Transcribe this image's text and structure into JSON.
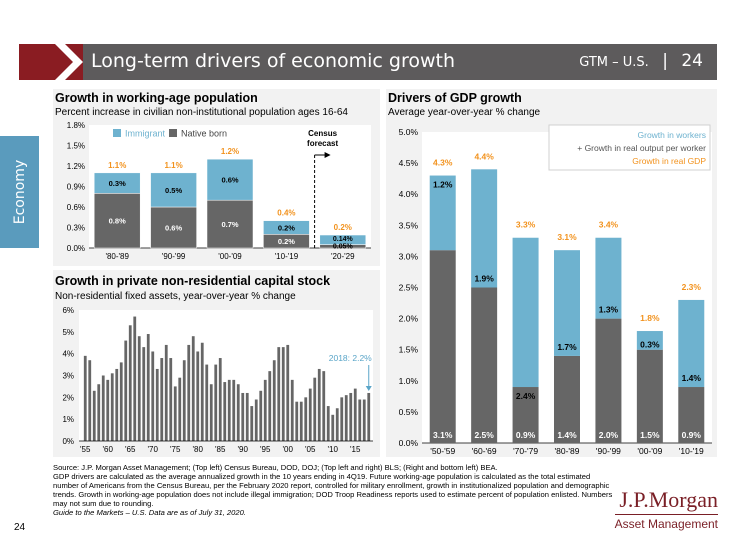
{
  "header": {
    "title": "Long-term drivers of economic growth",
    "section": "GTM – U.S.",
    "separator": "|",
    "page": "24"
  },
  "side_tab": {
    "label": "Economy"
  },
  "panels": {
    "working_age": {
      "title": "Growth in working-age population",
      "subtitle": "Percent increase in civilian non-institutional population ages 16-64",
      "legend": {
        "immigrant": "Immigrant",
        "native": "Native born"
      },
      "census_label": "Census\nforecast"
    },
    "capital_stock": {
      "title": "Growth in private non-residential capital stock",
      "subtitle": "Non-residential fixed assets, year-over-year % change",
      "annotation": "2018: 2.2%"
    },
    "gdp": {
      "title": "Drivers of GDP growth",
      "subtitle": "Average year-over-year % change",
      "legend": {
        "workers": "Growth in workers",
        "output": "+ Growth in real output per worker",
        "gdp": "Growth in real GDP"
      }
    }
  },
  "colors": {
    "dark": "#666666",
    "light": "#6eb2cf",
    "orange": "#f2921d",
    "annotation": "#5aa5c8",
    "panel_bg": "#f2f2f2",
    "maroon": "#8a1c22"
  },
  "chart_data": [
    {
      "type": "bar",
      "stacked": true,
      "title": "Growth in working-age population",
      "categories": [
        "'80-'89",
        "'90-'99",
        "'00-'09",
        "'10-'19",
        "'20-'29"
      ],
      "series": [
        {
          "name": "Native born",
          "values": [
            0.8,
            0.6,
            0.7,
            0.2,
            0.05
          ],
          "labels": [
            "0.8%",
            "0.6%",
            "0.7%",
            "0.2%",
            "0.05%"
          ]
        },
        {
          "name": "Immigrant",
          "values": [
            0.3,
            0.5,
            0.6,
            0.2,
            0.14
          ],
          "labels": [
            "0.3%",
            "0.5%",
            "0.6%",
            "0.2%",
            "0.14%"
          ]
        }
      ],
      "totals": [
        "1.1%",
        "1.1%",
        "1.2%",
        "0.4%",
        "0.2%"
      ],
      "ylim": [
        0,
        1.8
      ],
      "yticks": [
        "0.0%",
        "0.3%",
        "0.6%",
        "0.9%",
        "1.2%",
        "1.5%",
        "1.8%"
      ],
      "ytick_values": [
        0,
        0.3,
        0.6,
        0.9,
        1.2,
        1.5,
        1.8
      ]
    },
    {
      "type": "bar",
      "title": "Growth in private non-residential capital stock",
      "x_start": 1955,
      "values": [
        3.9,
        3.7,
        2.3,
        2.6,
        3.0,
        2.8,
        3.1,
        3.3,
        3.6,
        4.6,
        5.3,
        5.7,
        4.8,
        4.3,
        4.9,
        4.1,
        3.3,
        3.8,
        4.4,
        3.8,
        2.5,
        2.9,
        3.7,
        4.4,
        4.8,
        4.1,
        4.5,
        3.5,
        2.6,
        3.5,
        3.8,
        2.7,
        2.8,
        2.8,
        2.6,
        2.2,
        2.2,
        1.6,
        1.9,
        2.3,
        2.8,
        3.2,
        3.7,
        4.3,
        4.3,
        4.4,
        2.8,
        1.8,
        1.8,
        2.0,
        2.4,
        2.9,
        3.3,
        3.2,
        1.6,
        1.2,
        1.5,
        2.0,
        2.1,
        2.2,
        2.4,
        1.9,
        1.9,
        2.2
      ],
      "xticks": [
        "'55",
        "'60",
        "'65",
        "'70",
        "'75",
        "'80",
        "'85",
        "'90",
        "'95",
        "'00",
        "'05",
        "'10",
        "'15"
      ],
      "xtick_years": [
        1955,
        1960,
        1965,
        1970,
        1975,
        1980,
        1985,
        1990,
        1995,
        2000,
        2005,
        2010,
        2015
      ],
      "ylim": [
        0,
        6
      ],
      "yticks": [
        "0%",
        "1%",
        "2%",
        "3%",
        "4%",
        "5%",
        "6%"
      ],
      "ytick_values": [
        0,
        1,
        2,
        3,
        4,
        5,
        6
      ]
    },
    {
      "type": "bar",
      "stacked": true,
      "title": "Drivers of GDP growth",
      "categories": [
        "'50-'59",
        "'60-'69",
        "'70-'79",
        "'80-'89",
        "'90-'99",
        "'00-'09",
        "'10-'19"
      ],
      "series": [
        {
          "name": "Growth in workers",
          "values": [
            3.1,
            2.5,
            0.9,
            1.4,
            2.0,
            1.5,
            0.9
          ],
          "labels": [
            "3.1%",
            "2.5%",
            "0.9%",
            "1.4%",
            "2.0%",
            "1.5%",
            "0.9%"
          ]
        },
        {
          "name": "Growth in real output per worker",
          "values": [
            1.2,
            1.9,
            2.4,
            1.7,
            1.3,
            0.3,
            1.4
          ],
          "labels": [
            "1.2%",
            "1.9%",
            "2.4%",
            "1.7%",
            "1.3%",
            "0.3%",
            "1.4%"
          ]
        }
      ],
      "totals": [
        "4.3%",
        "4.4%",
        "3.3%",
        "3.1%",
        "3.4%",
        "1.8%",
        "2.3%"
      ],
      "ylim": [
        0,
        5
      ],
      "yticks": [
        "0.0%",
        "0.5%",
        "1.0%",
        "1.5%",
        "2.0%",
        "2.5%",
        "3.0%",
        "3.5%",
        "4.0%",
        "4.5%",
        "5.0%"
      ],
      "ytick_values": [
        0,
        0.5,
        1.0,
        1.5,
        2.0,
        2.5,
        3.0,
        3.5,
        4.0,
        4.5,
        5.0
      ]
    }
  ],
  "footnotes": [
    "Source: J.P. Morgan Asset Management; (Top left) Census Bureau, DOD, DOJ; (Top left and right) BLS; (Right and bottom left) BEA.",
    "GDP drivers are calculated as the average annualized growth in the 10 years ending in 4Q19. Future working-age population is calculated as the total estimated number of Americans from the Census Bureau, per the February 2020 report, controlled for military enrollment, growth in institutionalized population and demographic trends. Growth in working-age population does not include illegal immigration; DOD Troop Readiness reports used to estimate percent of population enlisted. Numbers may not sum due to rounding.",
    "Guide to the Markets – U.S. Data are as of July 31, 2020."
  ],
  "page_number": "24",
  "logo": {
    "brand": "J.P.Morgan",
    "sub": "Asset Management"
  }
}
